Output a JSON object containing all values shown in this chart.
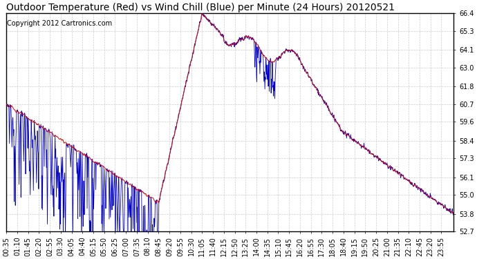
{
  "title": "Outdoor Temperature (Red) vs Wind Chill (Blue) per Minute (24 Hours) 20120521",
  "copyright": "Copyright 2012 Cartronics.com",
  "ylim": [
    52.7,
    66.4
  ],
  "yticks": [
    52.7,
    53.8,
    55.0,
    56.1,
    57.3,
    58.4,
    59.6,
    60.7,
    61.8,
    63.0,
    64.1,
    65.3,
    66.4
  ],
  "temp_color": "#dd0000",
  "wind_color": "#0000cc",
  "bg_color": "#ffffff",
  "grid_color": "#cccccc",
  "title_fontsize": 10,
  "copyright_fontsize": 7,
  "tick_fontsize": 7,
  "total_minutes": 1440,
  "x_tick_interval": 35,
  "x_tick_labels": [
    "00:35",
    "01:10",
    "01:45",
    "02:20",
    "02:55",
    "03:30",
    "04:05",
    "04:40",
    "05:15",
    "05:50",
    "06:25",
    "07:00",
    "07:35",
    "08:10",
    "08:45",
    "09:20",
    "09:55",
    "10:30",
    "11:05",
    "11:40",
    "12:15",
    "12:50",
    "13:25",
    "14:00",
    "14:35",
    "15:10",
    "15:45",
    "16:20",
    "16:55",
    "17:30",
    "18:05",
    "18:40",
    "19:15",
    "19:50",
    "20:25",
    "21:00",
    "21:35",
    "22:10",
    "22:45",
    "23:20",
    "23:55"
  ]
}
